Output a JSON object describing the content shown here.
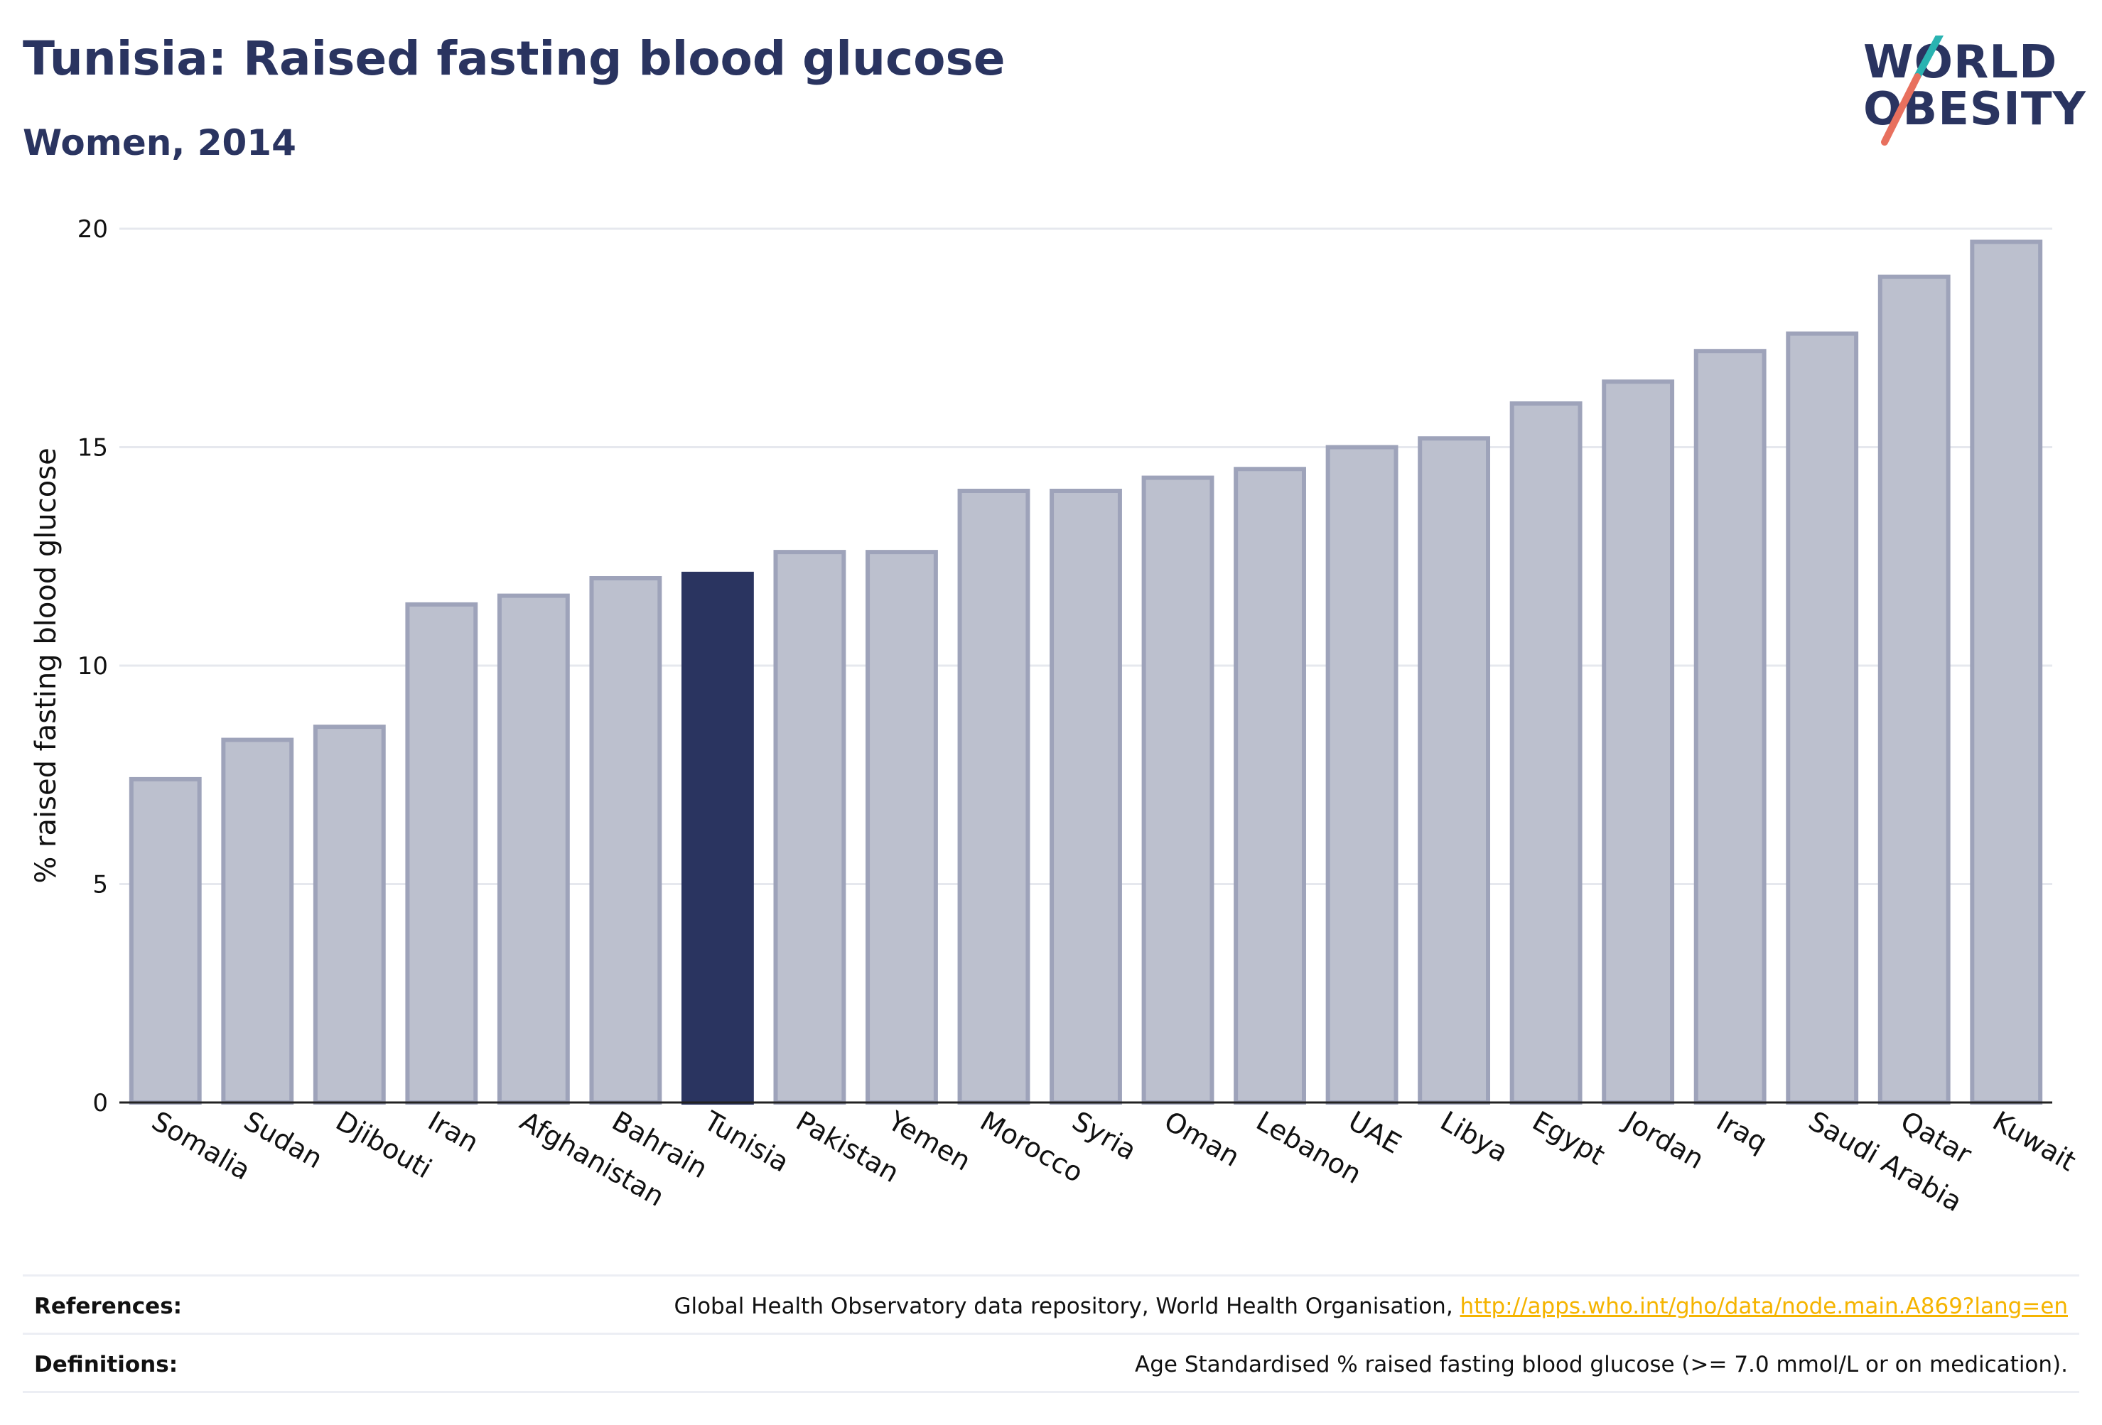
{
  "header": {
    "title": "Tunisia: Raised fasting blood glucose",
    "subtitle": "Women, 2014"
  },
  "logo": {
    "line1": "WORLD",
    "line2": "OBESITY"
  },
  "colors": {
    "highlight_bar": "#2a3460",
    "other_bar": "#bcc0ce",
    "other_bar_stroke": "#9ea3ba",
    "gridline": "#e6e8ee",
    "logo_teal": "#2ab3b1",
    "logo_coral": "#e8705e",
    "link": "#f5b400"
  },
  "chart_data": {
    "type": "bar",
    "categories": [
      "Somalia",
      "Sudan",
      "Djibouti",
      "Iran",
      "Afghanistan",
      "Bahrain",
      "Tunisia",
      "Pakistan",
      "Yemen",
      "Morocco",
      "Syria",
      "Oman",
      "Lebanon",
      "UAE",
      "Libya",
      "Egypt",
      "Jordan",
      "Iraq",
      "Saudi Arabia",
      "Qatar",
      "Kuwait"
    ],
    "values": [
      7.4,
      8.3,
      8.6,
      11.4,
      11.6,
      12.0,
      12.1,
      12.6,
      12.6,
      14.0,
      14.0,
      14.3,
      14.5,
      15.0,
      15.2,
      16.0,
      16.5,
      17.2,
      17.6,
      18.9,
      19.7
    ],
    "highlight": "Tunisia",
    "ylabel": "% raised fasting blood glucose",
    "xlabel": "",
    "ylim": [
      0,
      20
    ],
    "yticks": [
      0,
      5,
      10,
      15,
      20
    ],
    "grid": true
  },
  "footer": {
    "references_label": "References:",
    "references_text": "Global Health Observatory data repository, World Health Organisation, ",
    "references_link": "http://apps.who.int/gho/data/node.main.A869?lang=en",
    "definitions_label": "Definitions:",
    "definitions_text": "Age Standardised % raised fasting blood glucose (>= 7.0 mmol/L or on medication)."
  }
}
